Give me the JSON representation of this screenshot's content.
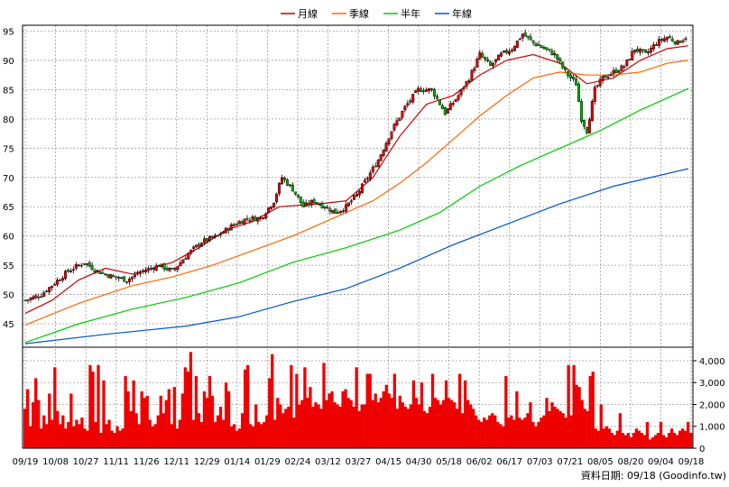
{
  "chart_data": {
    "type": "candlestick",
    "legend": [
      {
        "label": "月線",
        "color": "#cc0000"
      },
      {
        "label": "季線",
        "color": "#ff6600"
      },
      {
        "label": "半年",
        "color": "#00cc00"
      },
      {
        "label": "年線",
        "color": "#0055cc"
      }
    ],
    "price_axis": {
      "ylim": [
        41,
        96
      ],
      "ticks": [
        45,
        50,
        55,
        60,
        65,
        70,
        75,
        80,
        85,
        90,
        95
      ]
    },
    "volume_axis": {
      "ylim": [
        0,
        4700
      ],
      "ticks": [
        "0",
        "1,000",
        "2,000",
        "3,000",
        "4,000"
      ],
      "tick_values": [
        0,
        1000,
        2000,
        3000,
        4000
      ]
    },
    "x_ticks": [
      "09/19",
      "10/08",
      "10/27",
      "11/11",
      "11/26",
      "12/11",
      "12/29",
      "01/14",
      "01/29",
      "02/24",
      "03/12",
      "03/27",
      "04/15",
      "04/30",
      "05/18",
      "06/02",
      "06/17",
      "07/03",
      "07/21",
      "08/05",
      "08/20",
      "09/04",
      "09/18"
    ],
    "price_path": [
      [
        0,
        49
      ],
      [
        6,
        50
      ],
      [
        11,
        52
      ],
      [
        16,
        54
      ],
      [
        22,
        55.5
      ],
      [
        27,
        54
      ],
      [
        33,
        53
      ],
      [
        38,
        52.5
      ],
      [
        44,
        54
      ],
      [
        50,
        55
      ],
      [
        55,
        54
      ],
      [
        61,
        57
      ],
      [
        66,
        59
      ],
      [
        72,
        60
      ],
      [
        78,
        62
      ],
      [
        83,
        63
      ],
      [
        88,
        63
      ],
      [
        93,
        66
      ],
      [
        96,
        70
      ],
      [
        100,
        68
      ],
      [
        104,
        65
      ],
      [
        108,
        66
      ],
      [
        112,
        65
      ],
      [
        116,
        64
      ],
      [
        120,
        65
      ],
      [
        124,
        67
      ],
      [
        128,
        70
      ],
      [
        132,
        73
      ],
      [
        137,
        78
      ],
      [
        142,
        82
      ],
      [
        147,
        85
      ],
      [
        152,
        85
      ],
      [
        157,
        81
      ],
      [
        162,
        84
      ],
      [
        166,
        87
      ],
      [
        170,
        91
      ],
      [
        174,
        89
      ],
      [
        178,
        91
      ],
      [
        182,
        92
      ],
      [
        186,
        94.5
      ],
      [
        190,
        93
      ],
      [
        194,
        92
      ],
      [
        198,
        91
      ],
      [
        202,
        88
      ],
      [
        206,
        86
      ],
      [
        208,
        80
      ],
      [
        210,
        78
      ],
      [
        213,
        85
      ],
      [
        216,
        87
      ],
      [
        220,
        88
      ],
      [
        224,
        89
      ],
      [
        228,
        92
      ],
      [
        232,
        91
      ],
      [
        236,
        93
      ],
      [
        240,
        94
      ],
      [
        244,
        93
      ],
      [
        247,
        94
      ]
    ],
    "moving_averages": {
      "月線": [
        [
          0,
          46.8
        ],
        [
          10,
          49
        ],
        [
          20,
          52.5
        ],
        [
          30,
          54.5
        ],
        [
          40,
          53.5
        ],
        [
          55,
          55.5
        ],
        [
          65,
          58
        ],
        [
          75,
          61
        ],
        [
          85,
          62.5
        ],
        [
          95,
          65
        ],
        [
          110,
          65.5
        ],
        [
          120,
          66
        ],
        [
          130,
          70
        ],
        [
          140,
          77
        ],
        [
          150,
          82.5
        ],
        [
          160,
          84
        ],
        [
          170,
          87.5
        ],
        [
          180,
          90
        ],
        [
          190,
          91
        ],
        [
          200,
          89.5
        ],
        [
          210,
          86
        ],
        [
          220,
          87
        ],
        [
          230,
          90
        ],
        [
          240,
          92
        ],
        [
          248,
          92.5
        ]
      ],
      "季線": [
        [
          0,
          44.8
        ],
        [
          20,
          48.5
        ],
        [
          40,
          51.5
        ],
        [
          55,
          53
        ],
        [
          70,
          55
        ],
        [
          85,
          57.5
        ],
        [
          100,
          60
        ],
        [
          115,
          63
        ],
        [
          130,
          66
        ],
        [
          140,
          69
        ],
        [
          150,
          72.5
        ],
        [
          160,
          76.5
        ],
        [
          170,
          80.5
        ],
        [
          180,
          84
        ],
        [
          190,
          87
        ],
        [
          200,
          88
        ],
        [
          210,
          87.5
        ],
        [
          220,
          87.5
        ],
        [
          230,
          88
        ],
        [
          240,
          89.5
        ],
        [
          248,
          90
        ]
      ],
      "半年": [
        [
          0,
          41.8
        ],
        [
          20,
          45
        ],
        [
          40,
          47.5
        ],
        [
          60,
          49.5
        ],
        [
          80,
          52
        ],
        [
          100,
          55.5
        ],
        [
          120,
          58
        ],
        [
          140,
          61
        ],
        [
          155,
          64
        ],
        [
          170,
          68.5
        ],
        [
          185,
          72
        ],
        [
          200,
          75
        ],
        [
          215,
          78
        ],
        [
          230,
          81.5
        ],
        [
          248,
          85.2
        ]
      ],
      "年線": [
        [
          0,
          41.6
        ],
        [
          30,
          43.2
        ],
        [
          60,
          44.6
        ],
        [
          80,
          46.2
        ],
        [
          100,
          48.8
        ],
        [
          120,
          51
        ],
        [
          140,
          54.5
        ],
        [
          160,
          58.5
        ],
        [
          180,
          62
        ],
        [
          200,
          65.5
        ],
        [
          220,
          68.5
        ],
        [
          248,
          71.5
        ]
      ]
    },
    "volume_bars": {
      "base": [
        1800,
        1200,
        1000,
        2100,
        3200,
        1800,
        900,
        1500,
        1100,
        2500,
        1300,
        900,
        1700,
        1100,
        1500,
        900,
        1200,
        800,
        1000,
        1300,
        1100,
        1400,
        900,
        800,
        1000,
        1300,
        1200,
        1000,
        700,
        900,
        1100,
        1300,
        800,
        700,
        1000,
        800,
        900,
        2400,
        2600,
        1700,
        1200,
        1600,
        1100,
        1900,
        2300,
        1500,
        1300,
        1000,
        1100,
        1500,
        1200,
        1600,
        2200,
        1300,
        1100,
        1000,
        900,
        1300,
        2500,
        3700,
        2200,
        1700,
        1300,
        2000,
        1600,
        1200,
        2600,
        2300,
        2100,
        1700,
        1200,
        1500,
        1900,
        1300,
        1400,
        1200,
        1000,
        1100,
        800,
        900,
        1600,
        1200,
        1400,
        1100,
        1000,
        1300,
        1200,
        1100,
        1200,
        1500,
        1400,
        1700,
        1300,
        2300,
        2000,
        1600,
        1800,
        1900,
        1500,
        1400,
        1600,
        2000,
        2200,
        2600,
        2300,
        2800,
        2500,
        2100,
        2000,
        1800,
        1700,
        2200,
        2500,
        2600,
        2100,
        2000,
        1900,
        2400,
        2700,
        2300,
        2200,
        1900,
        2100,
        1700,
        2000,
        2000,
        2400,
        2600,
        2200,
        2500,
        2100,
        2300,
        2600,
        2900,
        2500,
        2300,
        2000,
        1800,
        2400,
        2100,
        1900,
        1800,
        2000,
        2200,
        2300,
        2000,
        1800,
        1700,
        1600,
        1900,
        2100,
        2300,
        2200,
        2000,
        2200,
        2400,
        2300,
        2200,
        2100,
        1800,
        1700,
        1600,
        1900,
        2200,
        2000,
        1800,
        1500,
        1300,
        1200,
        1400,
        1300,
        1500,
        1600,
        1500,
        1200,
        1100,
        1000,
        1200,
        1400,
        1500,
        1300,
        1300,
        1400,
        1300,
        1400,
        1600,
        1300,
        1200,
        1000,
        1200,
        1400,
        1500,
        1500,
        1700,
        2100,
        1900,
        1800,
        1700,
        1600,
        1400,
        1600,
        1500,
        2400,
        2900,
        2800,
        2200,
        1800,
        1700,
        1300,
        1200,
        900,
        800,
        700,
        900,
        1000,
        900,
        700,
        600,
        800,
        900,
        700,
        600,
        700,
        500,
        700,
        900,
        800,
        700,
        600,
        500,
        400,
        500,
        600,
        700,
        800,
        600,
        500,
        700,
        900,
        700,
        600,
        800,
        900,
        800,
        1000,
        700
      ],
      "spikes": [
        [
          11,
          3500
        ],
        [
          12,
          3600
        ],
        [
          18,
          2400
        ],
        [
          27,
          2700
        ],
        [
          40,
          2200
        ],
        [
          59,
          3700
        ],
        [
          76,
          2500
        ],
        [
          98,
          3800
        ],
        [
          100,
          3500
        ],
        [
          106,
          3800
        ],
        [
          112,
          3100
        ],
        [
          138,
          3300
        ],
        [
          145,
          3100
        ],
        [
          154,
          2600
        ],
        [
          162,
          2400
        ],
        [
          176,
          2400
        ],
        [
          186,
          2700
        ],
        [
          191,
          2800
        ],
        [
          206,
          3500
        ],
        [
          210,
          4400
        ],
        [
          216,
          3300
        ],
        [
          229,
          3300
        ],
        [
          232,
          2400
        ],
        [
          248,
          3000
        ],
        [
          251,
          2600
        ],
        [
          270,
          3600
        ],
        [
          273,
          3800
        ],
        [
          282,
          2000
        ],
        [
          296,
          3200
        ],
        [
          300,
          4300
        ],
        [
          320,
          3800
        ],
        [
          326,
          3400
        ],
        [
          336,
          3700
        ],
        [
          345,
          1900
        ],
        [
          358,
          3900
        ],
        [
          377,
          2600
        ],
        [
          393,
          3700
        ],
        [
          406,
          3400
        ],
        [
          410,
          3400
        ],
        [
          436,
          3400
        ],
        [
          456,
          3100
        ],
        [
          467,
          3000
        ],
        [
          478,
          3400
        ],
        [
          492,
          3100
        ],
        [
          508,
          3400
        ],
        [
          515,
          3100
        ],
        [
          561,
          3300
        ],
        [
          572,
          2600
        ],
        [
          588,
          2100
        ],
        [
          604,
          2300
        ],
        [
          628,
          3800
        ],
        [
          634,
          3800
        ],
        [
          653,
          3300
        ],
        [
          657,
          3500
        ],
        [
          666,
          2000
        ],
        [
          686,
          1600
        ],
        [
          716,
          1200
        ],
        [
          731,
          1200
        ],
        [
          761,
          1200
        ]
      ]
    }
  },
  "footer": {
    "source": "資料日期: 09/18  (Goodinfo.tw)"
  }
}
